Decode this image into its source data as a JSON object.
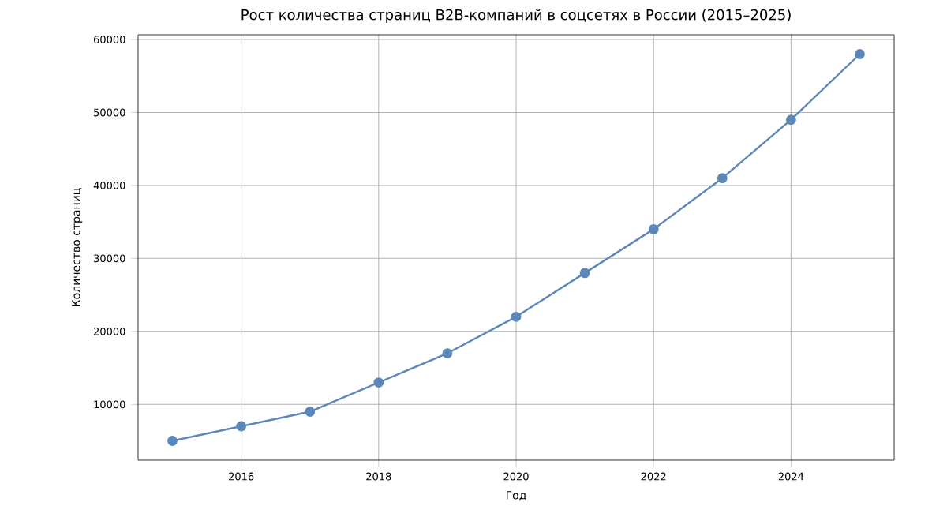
{
  "chart_data": {
    "type": "line",
    "title": "Рост количества страниц B2B-компаний в соцсетях в России (2015–2025)",
    "xlabel": "Год",
    "ylabel": "Количество страниц",
    "x": [
      2015,
      2016,
      2017,
      2018,
      2019,
      2020,
      2021,
      2022,
      2023,
      2024,
      2025
    ],
    "series": [
      {
        "color": "#5b87b9",
        "values": [
          5000,
          7000,
          9000,
          13000,
          17000,
          22000,
          28000,
          34000,
          41000,
          49000,
          58000
        ]
      }
    ],
    "xlim": [
      2014.5,
      2025.5
    ],
    "ylim": [
      2350,
      60650
    ],
    "xticks": [
      2016,
      2018,
      2020,
      2022,
      2024
    ],
    "yticks": [
      10000,
      20000,
      30000,
      40000,
      50000,
      60000
    ],
    "grid": true,
    "marker": "circle",
    "line_style": "solid"
  }
}
